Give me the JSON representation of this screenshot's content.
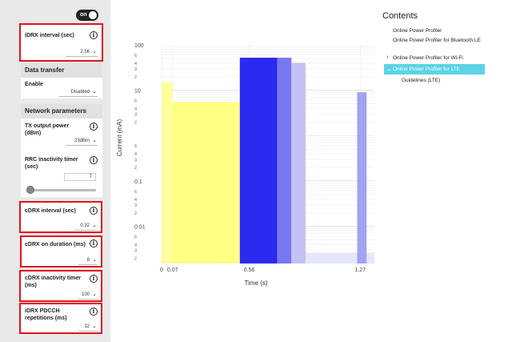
{
  "settings": {
    "toggle_label": "on",
    "idrx_interval": {
      "label": "iDRX interval (sec)",
      "value": "2.56"
    },
    "data_transfer": {
      "header": "Data transfer",
      "enable_label": "Enable",
      "enable_value": "Disabled"
    },
    "network_parameters": {
      "header": "Network parameters"
    },
    "tx_power": {
      "label": "TX output power (dBm)",
      "value": "23dBm"
    },
    "rrc_timer": {
      "label": "RRC inactivity timer (sec)",
      "value": "7"
    },
    "rrc_slider": {
      "fraction": 0.05
    },
    "cdrx_interval": {
      "label": "cDRX interval (sec)",
      "value": "0.32"
    },
    "cdrx_on_duration": {
      "label": "cDRX on duration (ms)",
      "value": "8"
    },
    "cdrx_inactivity": {
      "label": "cDRX inactivity timer (ms)",
      "value": "100"
    },
    "idrx_pdcch": {
      "label": "iDRX PDCCH repetitions (ms)",
      "value": "32"
    },
    "info_glyph": "i",
    "chevron": "⌄"
  },
  "contents": {
    "title": "Contents",
    "items": [
      "Online Power Profiler",
      "Online Power Profiler for Bluetooth LE",
      "Online Power Profiler for Wi-Fi",
      "Online Power Profiler for LTE",
      "Guidelines (LTE)"
    ],
    "active_index": 3,
    "expand_glyph": "›",
    "collapse_glyph": "⌄"
  },
  "chart_data": {
    "type": "bar",
    "xlabel": "Time (s)",
    "ylabel": "Current (mA)",
    "y_scale": "log",
    "ylim": [
      0.0015,
      100
    ],
    "xlim": [
      0,
      1.36
    ],
    "x_ticks": [
      "0",
      "0.07",
      "0.56",
      "1.27"
    ],
    "x_tick_values": [
      0,
      0.07,
      0.56,
      1.27
    ],
    "y_major_ticks": [
      "100",
      "10",
      "0.1",
      "0.01"
    ],
    "y_major_values": [
      100,
      10,
      0.1,
      0.01
    ],
    "y_minor_labels": [
      "2",
      "3",
      "4",
      "6"
    ],
    "segments": [
      {
        "x0": 0.0,
        "x1": 0.07,
        "y": 15,
        "color": "#ffff9e"
      },
      {
        "x0": 0.07,
        "x1": 0.5,
        "y": 5.5,
        "color": "#ffff85"
      },
      {
        "x0": 0.5,
        "x1": 0.74,
        "y": 52,
        "color": "#2a2af0"
      },
      {
        "x0": 0.74,
        "x1": 0.83,
        "y": 52,
        "color": "#7878f2"
      },
      {
        "x0": 0.83,
        "x1": 0.92,
        "y": 40,
        "color": "#c2c2f6"
      },
      {
        "x0": 0.92,
        "x1": 1.36,
        "y": 0.0026,
        "color": "#e6e6fb"
      },
      {
        "x0": 1.25,
        "x1": 1.31,
        "y": 9,
        "color": "#a2a2f2"
      }
    ]
  }
}
